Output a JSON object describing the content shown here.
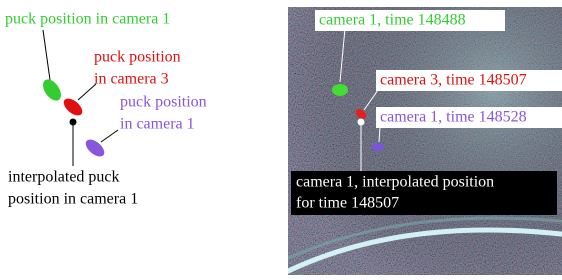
{
  "diagram": {
    "labels": {
      "green": "puck position in camera 1",
      "red": [
        "puck position",
        "in camera 3"
      ],
      "purple": [
        "puck position",
        "in camera 1"
      ],
      "interpolated": [
        "interpolated puck",
        "position in camera 1"
      ]
    },
    "photo_labels": {
      "green": "camera 1, time 148488",
      "red": "camera 3, time 148507",
      "purple": "camera 1, time 148528",
      "interpolated": [
        "camera 1, interpolated position",
        "for time 148507"
      ]
    }
  }
}
